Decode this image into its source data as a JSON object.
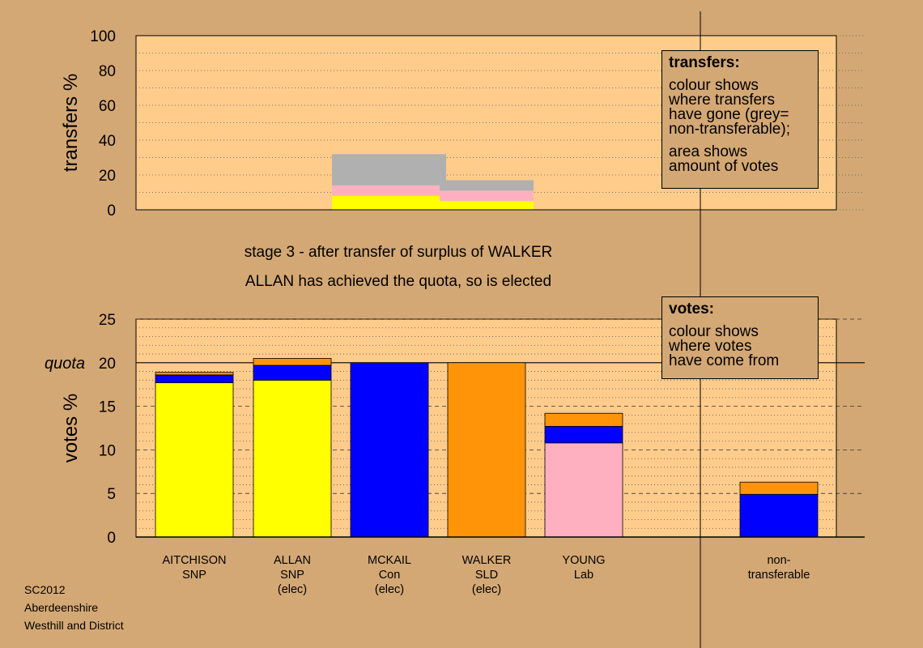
{
  "colors": {
    "background": "#D4A874",
    "panel": "#FFCC8C",
    "SNP": "#FFFF00",
    "Con": "#0000FF",
    "SLD": "#FF9408",
    "Lab": "#FFB0C0",
    "non_transferable": "#B0B0B0"
  },
  "captions": {
    "stage": "stage 3 - after transfer of surplus of WALKER",
    "elected": "ALLAN has achieved the quota, so is elected"
  },
  "info": {
    "transfers_title": "transfers:",
    "transfers_lines": [
      "colour shows",
      "where transfers",
      "have gone (grey=",
      "non-transferable);"
    ],
    "transfers_lines2": [
      "area shows",
      "amount of votes"
    ],
    "votes_title": "votes:",
    "votes_lines": [
      "colour shows",
      "where votes",
      "have come from"
    ]
  },
  "footer": {
    "line1": "SC2012",
    "line2": "Aberdeenshire",
    "line3": "Westhill and District"
  },
  "chart_data": [
    {
      "type": "bar",
      "stacked": true,
      "ylabel": "transfers %",
      "ylim": [
        0,
        100
      ],
      "yticks": [
        0,
        20,
        40,
        60,
        80,
        100
      ],
      "grid": "dotted horizontal",
      "categories": [
        "AITCHISON SNP",
        "ALLAN SNP (elec)",
        "MCKAIL Con (elec)",
        "WALKER SLD (elec)",
        "YOUNG Lab",
        "non-transferable"
      ],
      "bars": [
        {
          "from_category": "MCKAIL Con (elec)",
          "segments": [
            {
              "party": "SNP",
              "value": 8
            },
            {
              "party": "Lab",
              "value": 6
            },
            {
              "party": "non_transferable",
              "value": 18
            }
          ]
        },
        {
          "from_category": "WALKER SLD (elec)",
          "segments": [
            {
              "party": "SNP",
              "value": 5
            },
            {
              "party": "Lab",
              "value": 6
            },
            {
              "party": "non_transferable",
              "value": 6
            }
          ]
        }
      ]
    },
    {
      "type": "bar",
      "stacked": true,
      "ylabel": "votes %",
      "ylim": [
        0,
        25
      ],
      "yticks": [
        0,
        5,
        10,
        15,
        20,
        25
      ],
      "quota": 20,
      "quota_label": "quota",
      "grid": "dotted horizontal",
      "bars": [
        {
          "label": [
            "AITCHISON",
            "SNP"
          ],
          "segments": [
            {
              "party": "SNP",
              "value": 17.7
            },
            {
              "party": "Con",
              "value": 0.9
            },
            {
              "party": "SLD",
              "value": 0.3
            }
          ]
        },
        {
          "label": [
            "ALLAN",
            "SNP",
            "(elec)"
          ],
          "segments": [
            {
              "party": "SNP",
              "value": 18.0
            },
            {
              "party": "Con",
              "value": 1.7
            },
            {
              "party": "SLD",
              "value": 0.8
            }
          ]
        },
        {
          "label": [
            "MCKAIL",
            "Con",
            "(elec)"
          ],
          "segments": [
            {
              "party": "Con",
              "value": 20.0
            }
          ]
        },
        {
          "label": [
            "WALKER",
            "SLD",
            "(elec)"
          ],
          "segments": [
            {
              "party": "SLD",
              "value": 20.0
            }
          ]
        },
        {
          "label": [
            "YOUNG",
            "Lab"
          ],
          "segments": [
            {
              "party": "Lab",
              "value": 10.8
            },
            {
              "party": "Con",
              "value": 1.9
            },
            {
              "party": "SLD",
              "value": 1.5
            }
          ]
        },
        {
          "label": [
            "non-",
            "transferable"
          ],
          "segments": [
            {
              "party": "Con",
              "value": 4.9
            },
            {
              "party": "SLD",
              "value": 1.4
            }
          ]
        }
      ]
    }
  ]
}
